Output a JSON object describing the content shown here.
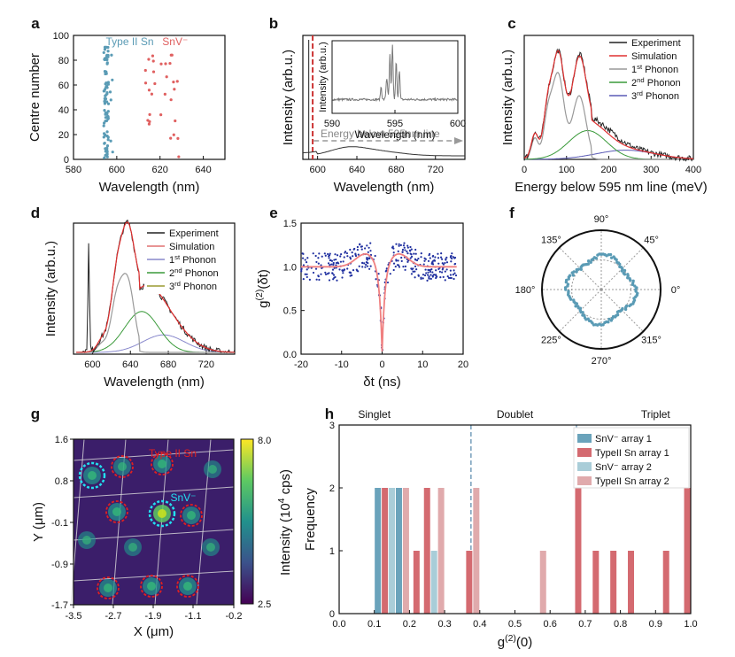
{
  "chart_data": [
    {
      "panel": "a",
      "type": "scatter",
      "xlabel": "Wavelength (nm)",
      "ylabel": "Centre number",
      "xlim": [
        580,
        650
      ],
      "ylim": [
        0,
        100
      ],
      "xticks": [
        "580",
        "600",
        "620",
        "640"
      ],
      "yticks": [
        "0",
        "20",
        "40",
        "60",
        "80",
        "100"
      ],
      "series": [
        {
          "name": "Type II Sn",
          "color": "#5a9bb5",
          "x_range": [
            594,
            600
          ],
          "n_points": 90
        },
        {
          "name": "SnV⁻",
          "color": "#e06060",
          "x_range": [
            612,
            630
          ],
          "n_points": 30
        }
      ]
    },
    {
      "panel": "b",
      "type": "line",
      "xlabel": "Wavelength (nm)",
      "ylabel": "Intensity (arb.u.)",
      "xlim": [
        585,
        750
      ],
      "xticks": [
        "600",
        "640",
        "680",
        "720"
      ],
      "zpl_line_nm": 595,
      "annotation": "Energy below 595nm line",
      "inset": {
        "xlabel": "Wavelength (nm)",
        "ylabel": "Intensity (arb.u.)",
        "xlim": [
          590,
          600
        ],
        "xticks": [
          "590",
          "595",
          "600"
        ]
      }
    },
    {
      "panel": "c",
      "type": "line",
      "xlabel": "Energy below 595 nm line (meV)",
      "ylabel": "Intensity (arb.u.)",
      "xlim": [
        0,
        400
      ],
      "xticks": [
        "0",
        "100",
        "200",
        "300",
        "400"
      ],
      "legend": [
        {
          "name": "Experiment",
          "color": "#222222"
        },
        {
          "name": "Simulation",
          "color": "#e03030"
        },
        {
          "name": "1st Phonon",
          "base": "1",
          "sup": "st",
          "rest": " Phonon",
          "color": "#999999"
        },
        {
          "name": "2nd Phonon",
          "base": "2",
          "sup": "nd",
          "rest": " Phonon",
          "color": "#3a9a3a"
        },
        {
          "name": "3rd Phonon",
          "base": "3",
          "sup": "rd",
          "rest": " Phonon",
          "color": "#5a5ab5"
        }
      ]
    },
    {
      "panel": "d",
      "type": "line",
      "xlabel": "Wavelength (nm)",
      "ylabel": "Intensity (arb.u.)",
      "xlim": [
        580,
        750
      ],
      "xticks": [
        "600",
        "640",
        "680",
        "720"
      ],
      "legend": [
        {
          "name": "Experiment",
          "color": "#222222"
        },
        {
          "name": "Simulation",
          "color": "#e07070"
        },
        {
          "name": "1st Phonon",
          "base": "1",
          "sup": "st",
          "rest": " Phonon",
          "color": "#8888cc"
        },
        {
          "name": "2nd Phonon",
          "base": "2",
          "sup": "nd",
          "rest": " Phonon",
          "color": "#3a9a3a"
        },
        {
          "name": "3rd Phonon",
          "base": "3",
          "sup": "rd",
          "rest": " Phonon",
          "color": "#9a9a30"
        }
      ]
    },
    {
      "panel": "e",
      "type": "scatter",
      "xlabel": "δt (ns)",
      "ylabel_base": "g",
      "ylabel_sup": "(2)",
      "ylabel_rest": "(δt)",
      "xlim": [
        -20,
        20
      ],
      "ylim": [
        0,
        1.5
      ],
      "xticks": [
        "-20",
        "-10",
        "0",
        "10",
        "20"
      ],
      "yticks": [
        "0.0",
        "0.5",
        "1.0",
        "1.5"
      ],
      "g2_min": 0.14
    },
    {
      "panel": "f",
      "type": "polar",
      "angles": [
        "90°",
        "45°",
        "0°",
        "315°",
        "270°",
        "225°",
        "180°",
        "135°"
      ]
    },
    {
      "panel": "g",
      "type": "heatmap",
      "xlabel": "X (μm)",
      "ylabel": "Y (μm)",
      "xticks": [
        "-3.5",
        "-2.7",
        "-1.9",
        "-1.1",
        "-0.2"
      ],
      "yticks": [
        "1.6",
        "0.8",
        "-0.1",
        "-0.9",
        "-1.7"
      ],
      "colorbar_label": "Intensity (10⁴ cps)",
      "colorbar_label_base": "Intensity (10",
      "colorbar_label_sup": "4",
      "colorbar_label_rest": " cps)",
      "colorbar_ticks": [
        "8.0",
        "2.5"
      ],
      "annotations": [
        "Type II Sn",
        "SnV⁻"
      ]
    },
    {
      "panel": "h",
      "type": "bar",
      "xlabel_base": "g",
      "xlabel_sup": "(2)",
      "xlabel_rest": "(0)",
      "ylabel": "Frequency",
      "xlim": [
        0,
        1
      ],
      "ylim": [
        0,
        3
      ],
      "xticks": [
        "0.0",
        "0.1",
        "0.2",
        "0.3",
        "0.4",
        "0.5",
        "0.6",
        "0.7",
        "0.8",
        "0.9",
        "1.0"
      ],
      "yticks": [
        "0",
        "1",
        "2",
        "3"
      ],
      "regions": [
        "Singlet",
        "Doublet",
        "Triplet"
      ],
      "thresholds": [
        0.375,
        0.675
      ],
      "series": [
        {
          "name": "SnV⁻ array 1",
          "color": "#6aa3bb",
          "bars": [
            [
              0.11,
              2
            ],
            [
              0.17,
              2
            ]
          ]
        },
        {
          "name": "TypeII Sn array 1",
          "color": "#d46a70",
          "bars": [
            [
              0.13,
              2
            ],
            [
              0.22,
              1
            ],
            [
              0.25,
              2
            ],
            [
              0.37,
              1
            ],
            [
              0.68,
              2
            ],
            [
              0.73,
              1
            ],
            [
              0.78,
              1
            ],
            [
              0.83,
              1
            ],
            [
              0.93,
              1
            ],
            [
              0.99,
              2
            ]
          ]
        },
        {
          "name": "SnV⁻ array 2",
          "color": "#a9cdd8",
          "bars": [
            [
              0.15,
              2
            ],
            [
              0.27,
              1
            ]
          ]
        },
        {
          "name": "TypeII Sn array 2",
          "color": "#e0aaac",
          "bars": [
            [
              0.19,
              2
            ],
            [
              0.29,
              2
            ],
            [
              0.39,
              2
            ],
            [
              0.58,
              1
            ]
          ]
        }
      ]
    }
  ]
}
